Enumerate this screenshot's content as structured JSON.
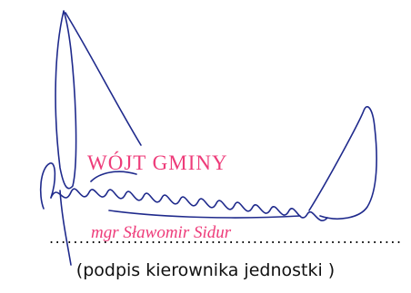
{
  "stamp": {
    "title": "WÓJT GMINY",
    "name": "mgr Sławomir Sidur",
    "color": "#ee3c7a"
  },
  "signature_line": {
    "dots": ".................................................................................................."
  },
  "caption": "(podpis kierownika jednostki )",
  "signature_ink_color": "#1f2a8c"
}
